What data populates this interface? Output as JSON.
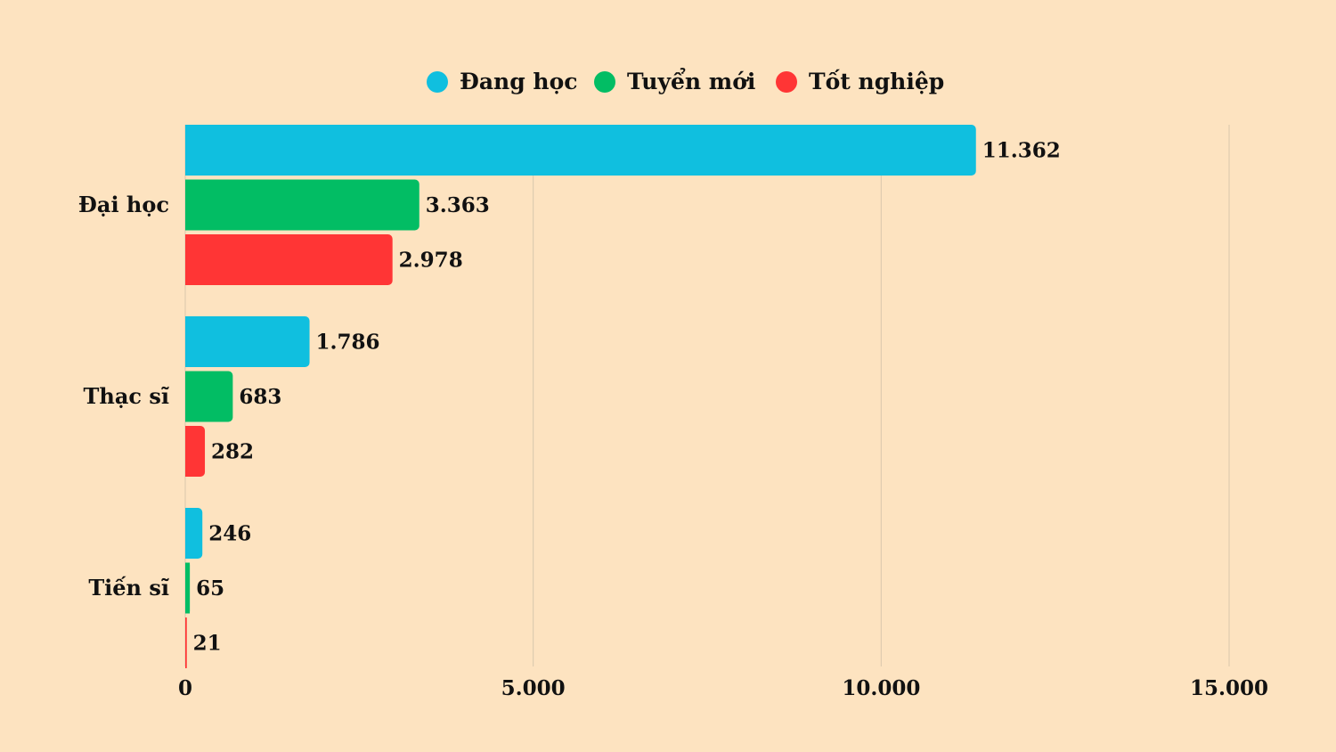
{
  "chart_data": {
    "type": "bar",
    "orientation": "horizontal",
    "categories": [
      "Đại học",
      "Thạc sĩ",
      "Tiến sĩ"
    ],
    "series": [
      {
        "name": "Đang học",
        "color": "#10bfdf",
        "values": [
          11362,
          1786,
          246
        ],
        "labels": [
          "11.362",
          "1.786",
          "246"
        ]
      },
      {
        "name": "Tuyển mới",
        "color": "#02bd64",
        "values": [
          3363,
          683,
          65
        ],
        "labels": [
          "3.363",
          "683",
          "65"
        ]
      },
      {
        "name": "Tốt nghiệp",
        "color": "#ff3535",
        "values": [
          2978,
          282,
          21
        ],
        "labels": [
          "2.978",
          "282",
          "21"
        ]
      }
    ],
    "xlim": [
      0,
      15000
    ],
    "xticks": [
      0,
      5000,
      10000,
      15000
    ],
    "xtick_labels": [
      "0",
      "5.000",
      "10.000",
      "15.000"
    ],
    "grid": true,
    "legend_position": "top-center",
    "colors": {
      "background": "#fde3c0",
      "grid": "#d9c7ad",
      "text": "#111111"
    }
  }
}
